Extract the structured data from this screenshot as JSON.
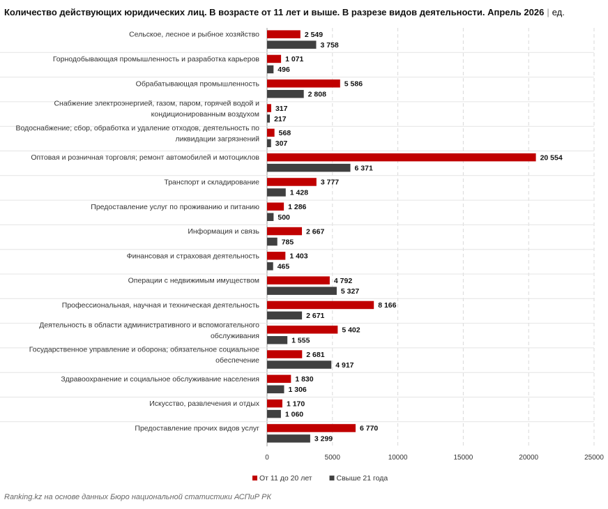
{
  "header": {
    "title": "Количество действующих юридических лиц. В возрасте от 11 лет и выше. В разрезе видов деятельности. Апрель 2026",
    "separator": "|",
    "unit": "ед."
  },
  "footer": {
    "source": "Ranking.kz на основе данных Бюро национальной статистики АСПиР РК"
  },
  "colors": {
    "series_1": "#c00000",
    "series_2": "#404040",
    "grid": "#d9d9d9"
  },
  "chart_data": {
    "type": "bar",
    "orientation": "horizontal",
    "grid": true,
    "legend_position": "bottom",
    "xlim": [
      0,
      25000
    ],
    "x_ticks": [
      "0",
      "5000",
      "10000",
      "15000",
      "20000",
      "25000"
    ],
    "categories": [
      [
        "Сельское, лесное и рыбное хозяйство"
      ],
      [
        "Горнодобывающая промышленность и разработка карьеров"
      ],
      [
        "Обрабатывающая промышленность"
      ],
      [
        "Снабжение электроэнергией, газом, паром, горячей водой и",
        "кондиционированным воздухом"
      ],
      [
        "Водоснабжение; сбор, обработка и удаление отходов, деятельность по",
        "ликвидации загрязнений"
      ],
      [
        "Оптовая и розничная торговля; ремонт автомобилей и мотоциклов"
      ],
      [
        "Транспорт и складирование"
      ],
      [
        "Предоставление услуг по проживанию и питанию"
      ],
      [
        "Информация и связь"
      ],
      [
        "Финансовая и страховая деятельность"
      ],
      [
        "Операции с недвижимым имуществом"
      ],
      [
        "Профессиональная, научная и техническая деятельность"
      ],
      [
        "Деятельность в области административного и вспомогательного",
        "обслуживания"
      ],
      [
        "Государственное управление и оборона; обязательное социальное",
        "обеспечение"
      ],
      [
        "Здравоохранение и социальное обслуживание населения"
      ],
      [
        "Искусство, развлечения и отдых"
      ],
      [
        "Предоставление прочих видов услуг"
      ]
    ],
    "series": [
      {
        "name": "От 11 до 20 лет",
        "values": [
          2549,
          1071,
          5586,
          317,
          568,
          20554,
          3777,
          1286,
          2667,
          1403,
          4792,
          8166,
          5402,
          2681,
          1830,
          1170,
          6770
        ],
        "labels": [
          "2 549",
          "1 071",
          "5 586",
          "317",
          "568",
          "20 554",
          "3 777",
          "1 286",
          "2 667",
          "1 403",
          "4 792",
          "8 166",
          "5 402",
          "2 681",
          "1 830",
          "1 170",
          "6 770"
        ]
      },
      {
        "name": "Свыше 21 года",
        "values": [
          3758,
          496,
          2808,
          217,
          307,
          6371,
          1428,
          500,
          785,
          465,
          5327,
          2671,
          1555,
          4917,
          1306,
          1060,
          3299
        ],
        "labels": [
          "3 758",
          "496",
          "2 808",
          "217",
          "307",
          "6 371",
          "1 428",
          "500",
          "785",
          "465",
          "5 327",
          "2 671",
          "1 555",
          "4 917",
          "1 306",
          "1 060",
          "3 299"
        ]
      }
    ]
  }
}
